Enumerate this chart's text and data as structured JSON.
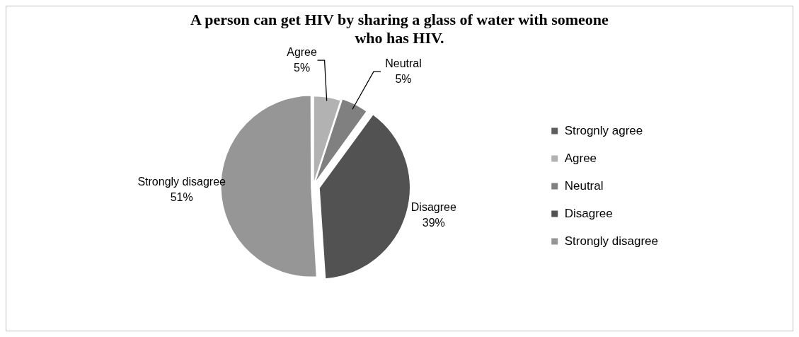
{
  "chart_data": {
    "type": "pie",
    "title": "A person can get HIV by sharing a glass of water with someone who has HIV.",
    "categories": [
      "Strognly agree",
      "Agree",
      "Neutral",
      "Disagree",
      "Strongly disagree"
    ],
    "values": [
      0,
      5,
      5,
      39,
      51
    ],
    "colors": [
      "#5f5f5f",
      "#b2b2b2",
      "#808080",
      "#525252",
      "#969696"
    ],
    "value_labels": [
      null,
      "5%",
      "5%",
      "39%",
      "51%"
    ],
    "legend": "right"
  }
}
